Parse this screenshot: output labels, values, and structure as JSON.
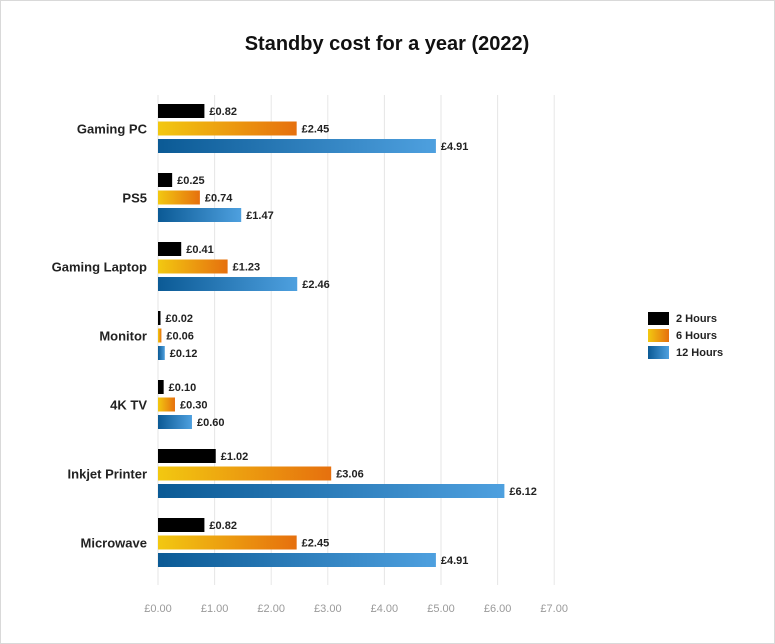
{
  "chart_data": {
    "type": "bar",
    "orientation": "horizontal",
    "title": "Standby cost for a year (2022)",
    "categories": [
      "Gaming PC",
      "PS5",
      "Gaming Laptop",
      "Monitor",
      "4K TV",
      "Inkjet Printer",
      "Microwave"
    ],
    "series": [
      {
        "name": "2 Hours",
        "values": [
          0.82,
          0.25,
          0.41,
          0.02,
          0.1,
          1.02,
          0.82
        ],
        "labels": [
          "£0.82",
          "£0.25",
          "£0.41",
          "£0.02",
          "£0.10",
          "£1.02",
          "£0.82"
        ]
      },
      {
        "name": "6 Hours",
        "values": [
          2.45,
          0.74,
          1.23,
          0.06,
          0.3,
          3.06,
          2.45
        ],
        "labels": [
          "£2.45",
          "£0.74",
          "£1.23",
          "£0.06",
          "£0.30",
          "£3.06",
          "£2.45"
        ]
      },
      {
        "name": "12 Hours",
        "values": [
          4.91,
          1.47,
          2.46,
          0.12,
          0.6,
          6.12,
          4.91
        ],
        "labels": [
          "£4.91",
          "£1.47",
          "£2.46",
          "£0.12",
          "£0.60",
          "£6.12",
          "£4.91"
        ]
      }
    ],
    "xticks": [
      "£0.00",
      "£1.00",
      "£2.00",
      "£3.00",
      "£4.00",
      "£5.00",
      "£6.00",
      "£7.00"
    ],
    "xlim": [
      0,
      7
    ],
    "xlabel": "",
    "ylabel": "",
    "grid": true,
    "legend_position": "right",
    "colors": {
      "2 Hours": [
        "#000000",
        "#000000"
      ],
      "6 Hours": [
        "#f2c811",
        "#e6700e"
      ],
      "12 Hours": [
        "#0b5a95",
        "#4ea0df"
      ]
    }
  }
}
